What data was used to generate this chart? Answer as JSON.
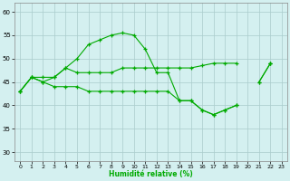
{
  "title": "",
  "xlabel": "Humidité relative (%)",
  "background_color": "#d4f0f0",
  "grid_color": "#aacccc",
  "line_color": "#00aa00",
  "x": [
    0,
    1,
    2,
    3,
    4,
    5,
    6,
    7,
    8,
    9,
    10,
    11,
    12,
    13,
    14,
    15,
    16,
    17,
    18,
    19,
    20,
    21,
    22,
    23
  ],
  "curve1": [
    43,
    46,
    45,
    46,
    48,
    50,
    53,
    54,
    55,
    55.5,
    55,
    52,
    47,
    47,
    41,
    41,
    39,
    38,
    39,
    40,
    null,
    45,
    49,
    null
  ],
  "curve2": [
    43,
    46,
    46,
    46,
    48,
    47,
    47,
    47,
    47,
    48,
    48,
    48,
    48,
    48,
    48,
    48,
    48.5,
    49,
    49,
    49,
    null,
    null,
    49,
    null
  ],
  "curve3": [
    43,
    46,
    45,
    44,
    44,
    44,
    43,
    43,
    43,
    43,
    43,
    43,
    43,
    43,
    41,
    41,
    39,
    38,
    39,
    40,
    null,
    45,
    49,
    null
  ],
  "ylim": [
    28,
    62
  ],
  "xlim": [
    -0.5,
    23.5
  ],
  "yticks": [
    30,
    35,
    40,
    45,
    50,
    55,
    60
  ],
  "xticks": [
    0,
    1,
    2,
    3,
    4,
    5,
    6,
    7,
    8,
    9,
    10,
    11,
    12,
    13,
    14,
    15,
    16,
    17,
    18,
    19,
    20,
    21,
    22,
    23
  ]
}
